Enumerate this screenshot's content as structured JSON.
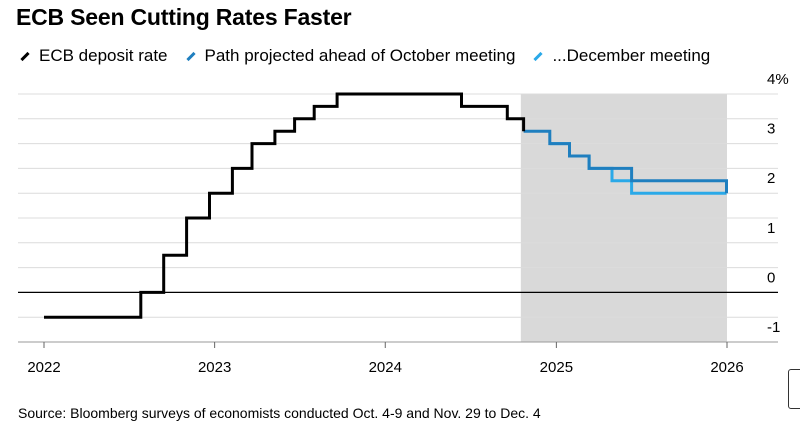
{
  "title": "ECB Seen Cutting Rates Faster",
  "legend": [
    {
      "label": "ECB deposit rate",
      "color": "#000000"
    },
    {
      "label": "Path projected ahead of October meeting",
      "color": "#1f7fbf"
    },
    {
      "label": "...December meeting",
      "color": "#2aa9e8"
    }
  ],
  "source": "Source: Bloomberg surveys of economists conducted Oct. 4-9 and Nov. 29 to Dec. 4",
  "chart_data": {
    "type": "line",
    "title": "ECB Seen Cutting Rates Faster",
    "xlabel": "",
    "ylabel": "",
    "x_ticks": [
      "2022",
      "2023",
      "2024",
      "2025",
      "2026"
    ],
    "y_ticks": [
      "-1",
      "0",
      "1",
      "2",
      "3",
      "4%"
    ],
    "ylim": [
      -1,
      4
    ],
    "xlim": [
      "2022-01-01",
      "2026-01-01"
    ],
    "grid": true,
    "legend_position": "top",
    "shaded_region": {
      "from": "2024-10-17",
      "to": "2026-01-01"
    },
    "series": [
      {
        "name": "ECB deposit rate",
        "step": true,
        "points": [
          [
            "2022-01-01",
            -0.5
          ],
          [
            "2022-07-27",
            0.0
          ],
          [
            "2022-09-14",
            0.75
          ],
          [
            "2022-11-02",
            1.5
          ],
          [
            "2022-12-21",
            2.0
          ],
          [
            "2023-02-08",
            2.5
          ],
          [
            "2023-03-22",
            3.0
          ],
          [
            "2023-05-10",
            3.25
          ],
          [
            "2023-06-21",
            3.5
          ],
          [
            "2023-08-02",
            3.75
          ],
          [
            "2023-09-20",
            4.0
          ],
          [
            "2024-06-12",
            3.75
          ],
          [
            "2024-09-18",
            3.5
          ],
          [
            "2024-10-23",
            3.25
          ]
        ]
      },
      {
        "name": "Path projected ahead of October meeting",
        "step": true,
        "points": [
          [
            "2024-10-23",
            3.25
          ],
          [
            "2024-12-18",
            3.0
          ],
          [
            "2025-01-29",
            2.75
          ],
          [
            "2025-03-12",
            2.5
          ],
          [
            "2025-06-11",
            2.25
          ],
          [
            "2025-12-31",
            2.0
          ]
        ]
      },
      {
        "name": "...December meeting",
        "step": true,
        "points": [
          [
            "2024-12-18",
            3.0
          ],
          [
            "2025-01-29",
            2.75
          ],
          [
            "2025-03-12",
            2.5
          ],
          [
            "2025-04-30",
            2.25
          ],
          [
            "2025-06-11",
            2.0
          ],
          [
            "2025-12-31",
            2.0
          ]
        ]
      }
    ]
  }
}
